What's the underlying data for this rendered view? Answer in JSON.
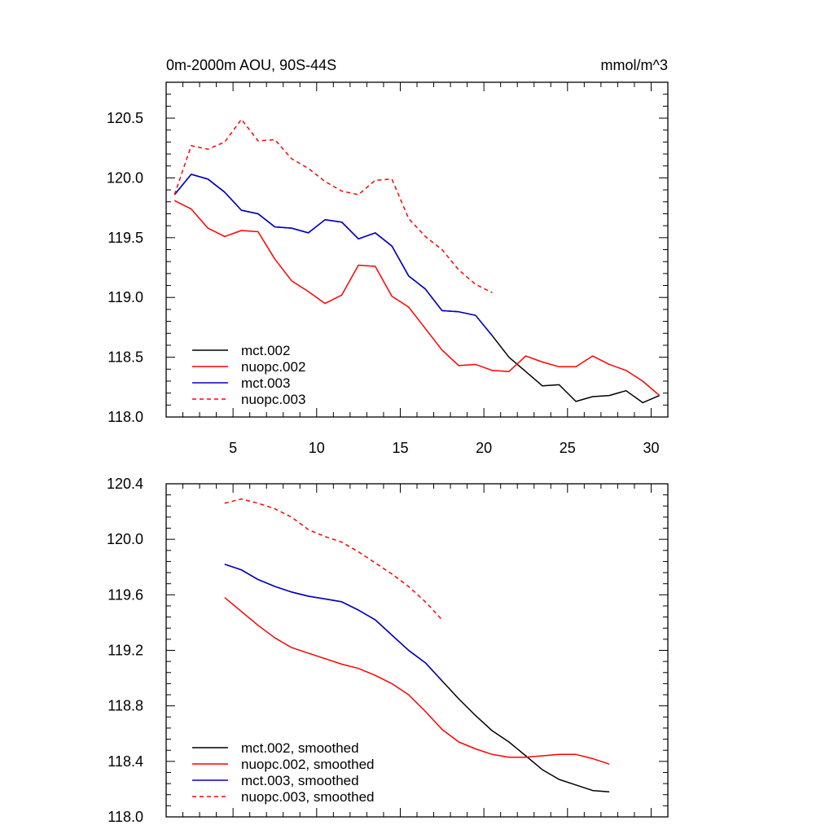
{
  "chart_data": [
    {
      "type": "line",
      "title": "0m-2000m AOU, 90S-44S",
      "units": "mmol/m^3",
      "xlabel": "",
      "ylabel": "",
      "xlim": [
        1,
        31
      ],
      "ylim": [
        118.0,
        120.8
      ],
      "x_ticks": [
        5,
        10,
        15,
        20,
        25,
        30
      ],
      "y_ticks": [
        118.0,
        118.5,
        119.0,
        119.5,
        120.0,
        120.5
      ],
      "y_tick_labels": [
        "118.0",
        "118.5",
        "119.0",
        "119.5",
        "120.0",
        "120.5"
      ],
      "show_x_tick_labels": true,
      "grid": false,
      "legend_position": "bottom-left",
      "series": [
        {
          "name": "mct.002",
          "color": "#000000",
          "dash": "solid",
          "x": [
            1.5,
            2.5,
            3.5,
            4.5,
            5.5,
            6.5,
            7.5,
            8.5,
            9.5,
            10.5,
            11.5,
            12.5,
            13.5,
            14.5,
            15.5,
            16.5,
            17.5,
            18.5,
            19.5,
            20.5,
            21.5,
            22.5,
            23.5,
            24.5,
            25.5,
            26.5,
            27.5,
            28.5,
            29.5,
            30.5
          ],
          "y": [
            119.86,
            120.03,
            119.99,
            119.88,
            119.73,
            119.7,
            119.59,
            119.58,
            119.54,
            119.65,
            119.63,
            119.49,
            119.54,
            119.43,
            119.18,
            119.07,
            118.89,
            118.88,
            118.85,
            118.68,
            118.5,
            118.38,
            118.26,
            118.27,
            118.13,
            118.17,
            118.18,
            118.22,
            118.12,
            118.18
          ]
        },
        {
          "name": "nuopc.002",
          "color": "#ff0000",
          "dash": "solid",
          "x": [
            1.5,
            2.5,
            3.5,
            4.5,
            5.5,
            6.5,
            7.5,
            8.5,
            9.5,
            10.5,
            11.5,
            12.5,
            13.5,
            14.5,
            15.5,
            16.5,
            17.5,
            18.5,
            19.5,
            20.5,
            21.5,
            22.5,
            23.5,
            24.5,
            25.5,
            26.5,
            27.5,
            28.5,
            29.5,
            30.5
          ],
          "y": [
            119.81,
            119.74,
            119.58,
            119.51,
            119.56,
            119.55,
            119.32,
            119.14,
            119.05,
            118.95,
            119.02,
            119.27,
            119.26,
            119.01,
            118.92,
            118.74,
            118.56,
            118.43,
            118.44,
            118.39,
            118.38,
            118.51,
            118.46,
            118.42,
            118.42,
            118.51,
            118.44,
            118.39,
            118.3,
            118.18
          ]
        },
        {
          "name": "mct.003",
          "color": "#0000cc",
          "dash": "solid",
          "x": [
            1.5,
            2.5,
            3.5,
            4.5,
            5.5,
            6.5,
            7.5,
            8.5,
            9.5,
            10.5,
            11.5,
            12.5,
            13.5,
            14.5,
            15.5,
            16.5,
            17.5,
            18.5,
            19.5,
            20.5
          ],
          "y": [
            119.86,
            120.03,
            119.99,
            119.88,
            119.73,
            119.7,
            119.59,
            119.58,
            119.54,
            119.65,
            119.63,
            119.49,
            119.54,
            119.43,
            119.18,
            119.07,
            118.89,
            118.88,
            118.85,
            118.68
          ]
        },
        {
          "name": "nuopc.003",
          "color": "#ff0000",
          "dash": "dashed",
          "x": [
            1.5,
            2.5,
            3.5,
            4.5,
            5.5,
            6.5,
            7.5,
            8.5,
            9.5,
            10.5,
            11.5,
            12.5,
            13.5,
            14.5,
            15.5,
            16.5,
            17.5,
            18.5,
            19.5,
            20.5
          ],
          "y": [
            119.86,
            120.27,
            120.24,
            120.3,
            120.49,
            120.31,
            120.32,
            120.16,
            120.08,
            119.97,
            119.89,
            119.86,
            119.98,
            119.99,
            119.66,
            119.51,
            119.4,
            119.23,
            119.11,
            119.04
          ]
        }
      ]
    },
    {
      "type": "line",
      "title": "",
      "xlabel": "",
      "ylabel": "",
      "xlim": [
        1,
        31
      ],
      "ylim": [
        118.0,
        120.4
      ],
      "x_ticks": [
        5,
        10,
        15,
        20,
        25,
        30
      ],
      "y_ticks": [
        118.0,
        118.4,
        118.8,
        119.2,
        119.6,
        120.0,
        120.4
      ],
      "y_tick_labels": [
        "118.0",
        "118.4",
        "118.8",
        "119.2",
        "119.6",
        "120.0",
        "120.4"
      ],
      "show_x_tick_labels": false,
      "grid": false,
      "legend_position": "bottom-left",
      "series": [
        {
          "name": "mct.002, smoothed",
          "color": "#000000",
          "dash": "solid",
          "x": [
            4.5,
            5.5,
            6.5,
            7.5,
            8.5,
            9.5,
            10.5,
            11.5,
            12.5,
            13.5,
            14.5,
            15.5,
            16.5,
            17.5,
            18.5,
            19.5,
            20.5,
            21.5,
            22.5,
            23.5,
            24.5,
            25.5,
            26.5,
            27.5
          ],
          "y": [
            119.82,
            119.78,
            119.71,
            119.66,
            119.62,
            119.59,
            119.57,
            119.55,
            119.49,
            119.42,
            119.31,
            119.2,
            119.11,
            118.98,
            118.85,
            118.73,
            118.62,
            118.54,
            118.44,
            118.34,
            118.27,
            118.23,
            118.19,
            118.18
          ]
        },
        {
          "name": "nuopc.002, smoothed",
          "color": "#ff0000",
          "dash": "solid",
          "x": [
            4.5,
            5.5,
            6.5,
            7.5,
            8.5,
            9.5,
            10.5,
            11.5,
            12.5,
            13.5,
            14.5,
            15.5,
            16.5,
            17.5,
            18.5,
            19.5,
            20.5,
            21.5,
            22.5,
            23.5,
            24.5,
            25.5,
            26.5,
            27.5
          ],
          "y": [
            119.58,
            119.48,
            119.38,
            119.29,
            119.22,
            119.18,
            119.14,
            119.1,
            119.07,
            119.02,
            118.96,
            118.88,
            118.76,
            118.63,
            118.54,
            118.49,
            118.45,
            118.43,
            118.43,
            118.44,
            118.45,
            118.45,
            118.42,
            118.38
          ]
        },
        {
          "name": "mct.003, smoothed",
          "color": "#0000cc",
          "dash": "solid",
          "x": [
            4.5,
            5.5,
            6.5,
            7.5,
            8.5,
            9.5,
            10.5,
            11.5,
            12.5,
            13.5,
            14.5,
            15.5,
            16.5,
            17.5
          ],
          "y": [
            119.82,
            119.78,
            119.71,
            119.66,
            119.62,
            119.59,
            119.57,
            119.55,
            119.49,
            119.42,
            119.31,
            119.2,
            119.11,
            118.98
          ]
        },
        {
          "name": "nuopc.003, smoothed",
          "color": "#ff0000",
          "dash": "dashed",
          "x": [
            4.5,
            5.5,
            6.5,
            7.5,
            8.5,
            9.5,
            10.5,
            11.5,
            12.5,
            13.5,
            14.5,
            15.5,
            16.5,
            17.5
          ],
          "y": [
            120.26,
            120.29,
            120.26,
            120.22,
            120.16,
            120.07,
            120.02,
            119.98,
            119.91,
            119.83,
            119.75,
            119.66,
            119.55,
            119.42
          ]
        }
      ]
    }
  ]
}
